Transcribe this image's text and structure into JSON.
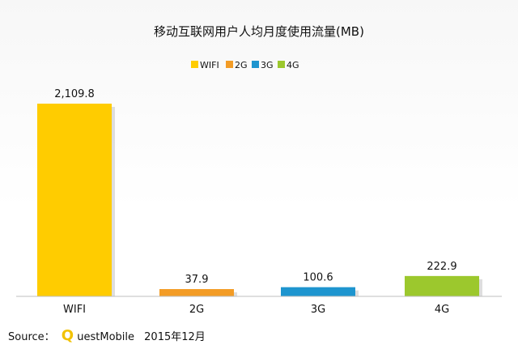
{
  "chart_data": {
    "type": "bar",
    "title": "移动互联网用户人均月度使用流量(MB)",
    "categories": [
      "WIFI",
      "2G",
      "3G",
      "4G"
    ],
    "values": [
      2109.8,
      37.9,
      100.6,
      222.9
    ],
    "value_labels": [
      "2,109.8",
      "37.9",
      "100.6",
      "222.9"
    ],
    "colors": [
      "#FFCC00",
      "#F39C26",
      "#1E95CF",
      "#9CC82D"
    ],
    "legend": [
      "WIFI",
      "2G",
      "3G",
      "4G"
    ],
    "legend_position": "top",
    "xlabel": "",
    "ylabel": "",
    "ylim": [
      0,
      2109.8
    ],
    "grid": false
  },
  "source": {
    "label": "Source：",
    "brand_q": "Q",
    "brand_rest": "uestMobile",
    "brand_color": "#F2C200",
    "date": "2015年12月"
  }
}
